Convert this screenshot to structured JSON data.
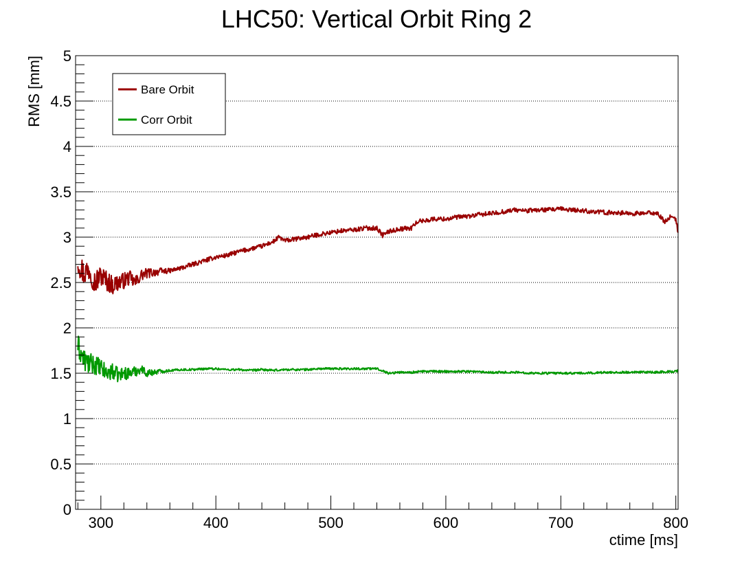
{
  "chart_data": {
    "type": "line",
    "title": "LHC50: Vertical Orbit Ring 2",
    "xlabel": "ctime [ms]",
    "ylabel": "RMS [mm]",
    "xlim": [
      278,
      802
    ],
    "ylim": [
      0,
      5
    ],
    "x_ticks": [
      300,
      400,
      500,
      600,
      700,
      800
    ],
    "x_tick_labels": [
      "300",
      "400",
      "500",
      "600",
      "700",
      "800"
    ],
    "y_ticks": [
      0,
      0.5,
      1,
      1.5,
      2,
      2.5,
      3,
      3.5,
      4,
      4.5,
      5
    ],
    "y_tick_labels": [
      "0",
      "0.5",
      "1",
      "1.5",
      "2",
      "2.5",
      "3",
      "3.5",
      "4",
      "4.5",
      "5"
    ],
    "grid": "horizontal dotted",
    "legend_position": "top-left",
    "series": [
      {
        "name": "Bare Orbit",
        "color": "#990000",
        "x": [
          280,
          285,
          290,
          295,
          300,
          305,
          310,
          315,
          320,
          325,
          330,
          335,
          340,
          350,
          360,
          370,
          380,
          390,
          400,
          410,
          420,
          430,
          440,
          450,
          455,
          460,
          470,
          480,
          490,
          500,
          510,
          520,
          530,
          540,
          545,
          550,
          560,
          570,
          575,
          580,
          590,
          600,
          610,
          620,
          630,
          640,
          650,
          660,
          670,
          680,
          690,
          700,
          710,
          720,
          730,
          740,
          750,
          760,
          770,
          780,
          785,
          790,
          795,
          800,
          802
        ],
        "y": [
          2.75,
          2.6,
          2.65,
          2.5,
          2.58,
          2.52,
          2.47,
          2.5,
          2.52,
          2.55,
          2.5,
          2.58,
          2.6,
          2.62,
          2.63,
          2.66,
          2.7,
          2.74,
          2.78,
          2.8,
          2.84,
          2.87,
          2.9,
          2.95,
          3.0,
          2.96,
          2.98,
          3.0,
          3.03,
          3.05,
          3.07,
          3.08,
          3.1,
          3.1,
          3.02,
          3.06,
          3.09,
          3.1,
          3.17,
          3.18,
          3.2,
          3.2,
          3.22,
          3.23,
          3.25,
          3.26,
          3.28,
          3.3,
          3.29,
          3.3,
          3.3,
          3.31,
          3.3,
          3.29,
          3.28,
          3.27,
          3.27,
          3.26,
          3.26,
          3.27,
          3.25,
          3.17,
          3.22,
          3.2,
          3.05
        ]
      },
      {
        "name": "Corr Orbit",
        "color": "#009900",
        "x": [
          280,
          285,
          290,
          295,
          300,
          305,
          310,
          315,
          320,
          325,
          330,
          335,
          340,
          350,
          360,
          370,
          380,
          390,
          400,
          410,
          420,
          430,
          440,
          450,
          460,
          470,
          480,
          490,
          500,
          510,
          520,
          530,
          540,
          545,
          550,
          560,
          570,
          580,
          590,
          600,
          620,
          640,
          660,
          680,
          700,
          720,
          740,
          760,
          780,
          800,
          802
        ],
        "y": [
          1.8,
          1.65,
          1.6,
          1.6,
          1.55,
          1.5,
          1.52,
          1.48,
          1.5,
          1.5,
          1.52,
          1.55,
          1.5,
          1.52,
          1.53,
          1.54,
          1.54,
          1.55,
          1.55,
          1.54,
          1.54,
          1.53,
          1.54,
          1.53,
          1.54,
          1.54,
          1.54,
          1.55,
          1.55,
          1.55,
          1.55,
          1.55,
          1.55,
          1.53,
          1.5,
          1.51,
          1.51,
          1.52,
          1.52,
          1.52,
          1.52,
          1.51,
          1.51,
          1.5,
          1.5,
          1.5,
          1.51,
          1.51,
          1.51,
          1.52,
          1.53
        ]
      }
    ]
  }
}
